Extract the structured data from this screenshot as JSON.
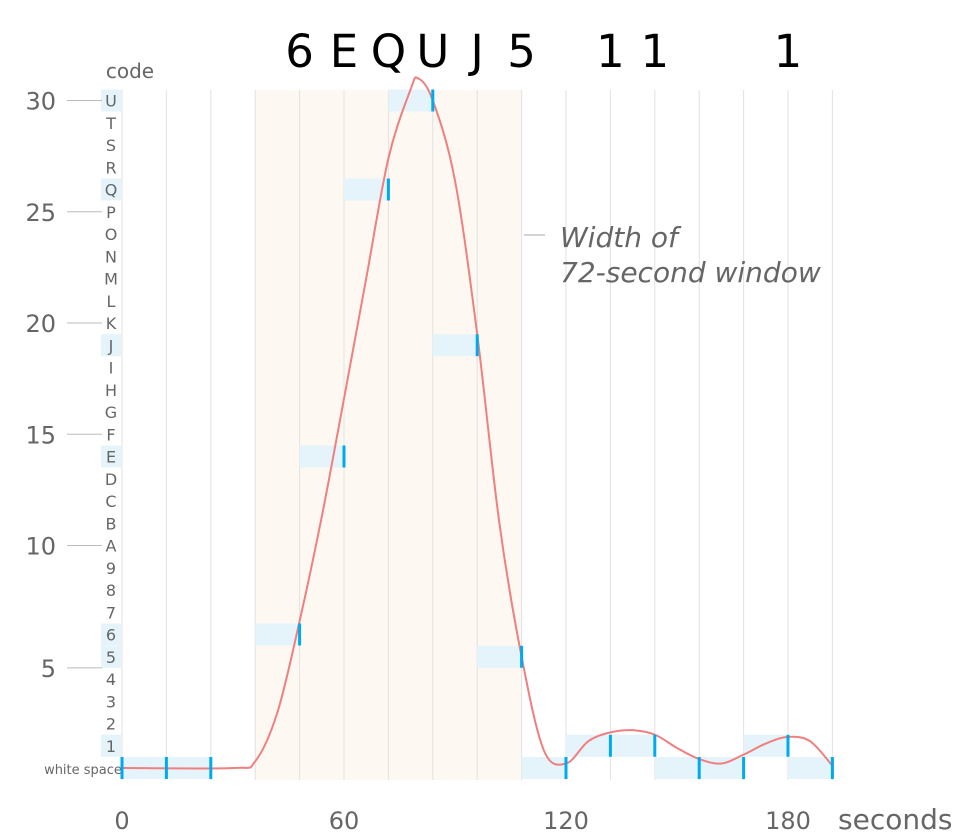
{
  "chart_data": {
    "type": "line",
    "x_label": "seconds",
    "x_ticks": [
      0,
      60,
      120,
      180
    ],
    "y_ticks": [
      5,
      10,
      15,
      20,
      25,
      30
    ],
    "xlim": [
      0,
      194
    ],
    "code_header": "code",
    "code_letters": [
      "white space",
      "1",
      "2",
      "3",
      "4",
      "5",
      "6",
      "7",
      "8",
      "9",
      "A",
      "B",
      "C",
      "D",
      "E",
      "F",
      "G",
      "H",
      "I",
      "J",
      "K",
      "L",
      "M",
      "N",
      "O",
      "P",
      "Q",
      "R",
      "S",
      "T",
      "U"
    ],
    "highlighted_codes": [
      "white space",
      "1",
      "5",
      "6",
      "E",
      "J",
      "Q",
      "U"
    ],
    "decoded_sequence": [
      "6",
      "E",
      "Q",
      "U",
      "J",
      "5",
      "1",
      "1",
      "1"
    ],
    "decoded_sequence_x": [
      48,
      60,
      72,
      84,
      96,
      108,
      132,
      144,
      180
    ],
    "window_annotation": [
      "Width of",
      "72-second window"
    ],
    "window_seconds": [
      36,
      108
    ],
    "grid_x": [
      0,
      12,
      24,
      36,
      48,
      60,
      72,
      84,
      96,
      108,
      120,
      132,
      144,
      156,
      168,
      180,
      192
    ],
    "samples": [
      {
        "t": 0,
        "code": "white space"
      },
      {
        "t": 12,
        "code": "white space"
      },
      {
        "t": 24,
        "code": "white space"
      },
      {
        "t": 48,
        "code": "6"
      },
      {
        "t": 60,
        "code": "E"
      },
      {
        "t": 72,
        "code": "Q"
      },
      {
        "t": 84,
        "code": "U"
      },
      {
        "t": 96,
        "code": "J"
      },
      {
        "t": 108,
        "code": "5"
      },
      {
        "t": 120,
        "code": "white space"
      },
      {
        "t": 132,
        "code": "1"
      },
      {
        "t": 144,
        "code": "1"
      },
      {
        "t": 156,
        "code": "white space"
      },
      {
        "t": 168,
        "code": "white space"
      },
      {
        "t": 180,
        "code": "1"
      },
      {
        "t": 192,
        "code": "white space"
      }
    ],
    "curve": {
      "x": [
        0,
        30,
        36,
        42,
        48,
        54,
        60,
        66,
        72,
        78,
        80,
        84,
        90,
        96,
        102,
        108,
        114,
        120,
        126,
        132,
        138,
        144,
        150,
        156,
        162,
        168,
        174,
        180,
        186,
        192
      ],
      "y": [
        0,
        0,
        0.3,
        2.5,
        6.6,
        11.3,
        16.6,
        22,
        27.4,
        30.5,
        31,
        30,
        26.4,
        19.5,
        11,
        5,
        0.8,
        0.2,
        1.2,
        1.6,
        1.7,
        1.5,
        0.9,
        0.4,
        0.2,
        0.6,
        1.1,
        1.4,
        1.2,
        0.1
      ]
    },
    "colors": {
      "curve": "#f07f7f",
      "marker": "#00aaee",
      "band": "#e4f4fa",
      "window": "#fdf9f2",
      "grid": "#e2e2e2"
    }
  }
}
